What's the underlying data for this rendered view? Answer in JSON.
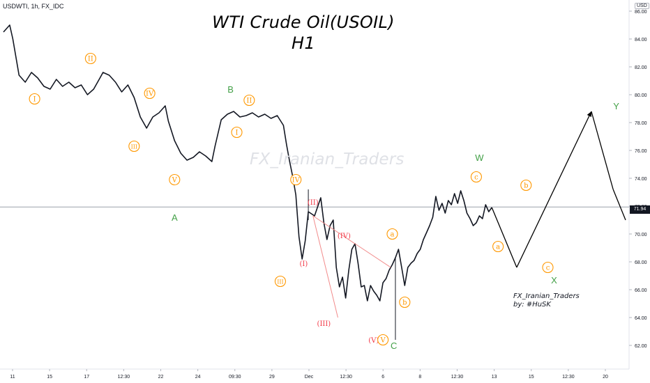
{
  "header": {
    "symbol": "USDWTI, 1h, FX_IDC",
    "title_line1": "WTI Crude Oil(USOIL)",
    "title_line2": "H1",
    "watermark": "FX_Iranian_Traders",
    "credit_line1": "FX_Iranian_Traders",
    "credit_line2": "by: #HuSK",
    "currency": "USD",
    "last_price": "71.94"
  },
  "colors": {
    "candle": "#131722",
    "orange": "#ff9800",
    "green": "#43a047",
    "red": "#f23645",
    "grid": "#c0c4cc",
    "trendline": "#f28b8b"
  },
  "chart_data": {
    "type": "line",
    "subtype": "candlestick price path with Elliott wave annotations",
    "ylim": [
      60.4,
      86.8
    ],
    "y_ticks": [
      62,
      64,
      66,
      68,
      70,
      72,
      74,
      76,
      78,
      80,
      82,
      84,
      86
    ],
    "y_tick_labels": [
      "62.00",
      "64.00",
      "66.00",
      "68.00",
      "70.00",
      "72.00",
      "74.00",
      "76.00",
      "78.00",
      "80.00",
      "82.00",
      "84.00",
      "86.00"
    ],
    "x_tick_labels": [
      "11",
      "15",
      "17",
      "12:30",
      "22",
      "24",
      "09:30",
      "29",
      "Dec",
      "12:30",
      "6",
      "8",
      "12:30",
      "13",
      "15",
      "12:30",
      "20"
    ],
    "price_path": [
      [
        0,
        84.5
      ],
      [
        2,
        85.0
      ],
      [
        3,
        84.0
      ],
      [
        5,
        81.4
      ],
      [
        7,
        80.9
      ],
      [
        9,
        81.6
      ],
      [
        11,
        81.2
      ],
      [
        13,
        80.6
      ],
      [
        15,
        80.4
      ],
      [
        17,
        81.1
      ],
      [
        19,
        80.6
      ],
      [
        21,
        80.9
      ],
      [
        23,
        80.5
      ],
      [
        25,
        80.7
      ],
      [
        27,
        80.0
      ],
      [
        29,
        80.4
      ],
      [
        31,
        81.2
      ],
      [
        32,
        81.6
      ],
      [
        34,
        81.4
      ],
      [
        36,
        80.9
      ],
      [
        38,
        80.2
      ],
      [
        40,
        80.7
      ],
      [
        42,
        79.8
      ],
      [
        44,
        78.4
      ],
      [
        46,
        77.6
      ],
      [
        48,
        78.4
      ],
      [
        50,
        78.7
      ],
      [
        52,
        79.2
      ],
      [
        53,
        78.1
      ],
      [
        55,
        76.7
      ],
      [
        57,
        75.8
      ],
      [
        59,
        75.3
      ],
      [
        61,
        75.5
      ],
      [
        63,
        75.9
      ],
      [
        65,
        75.6
      ],
      [
        67,
        75.2
      ],
      [
        68,
        76.3
      ],
      [
        70,
        78.2
      ],
      [
        72,
        78.6
      ],
      [
        74,
        78.8
      ],
      [
        76,
        78.4
      ],
      [
        78,
        78.5
      ],
      [
        80,
        78.7
      ],
      [
        82,
        78.4
      ],
      [
        84,
        78.6
      ],
      [
        86,
        78.3
      ],
      [
        88,
        78.5
      ],
      [
        90,
        77.8
      ],
      [
        91,
        76.4
      ],
      [
        92,
        75.2
      ],
      [
        93,
        74.1
      ],
      [
        94,
        72.8
      ],
      [
        95,
        69.8
      ],
      [
        96,
        68.2
      ],
      [
        97,
        69.5
      ],
      [
        98,
        71.6
      ],
      [
        100,
        71.3
      ],
      [
        102,
        72.6
      ],
      [
        103,
        70.8
      ],
      [
        104,
        69.6
      ],
      [
        105,
        70.6
      ],
      [
        106,
        71.0
      ],
      [
        107,
        67.6
      ],
      [
        108,
        66.2
      ],
      [
        109,
        66.9
      ],
      [
        110,
        65.4
      ],
      [
        111,
        67.4
      ],
      [
        112,
        68.9
      ],
      [
        113,
        69.3
      ],
      [
        114,
        67.9
      ],
      [
        115,
        66.2
      ],
      [
        116,
        66.3
      ],
      [
        117,
        65.2
      ],
      [
        118,
        66.3
      ],
      [
        119,
        65.9
      ],
      [
        120,
        65.6
      ],
      [
        121,
        65.2
      ],
      [
        122,
        66.5
      ],
      [
        123,
        66.8
      ],
      [
        124,
        67.4
      ],
      [
        125,
        67.8
      ],
      [
        126,
        68.3
      ],
      [
        127,
        68.9
      ],
      [
        128,
        67.6
      ],
      [
        129,
        66.3
      ],
      [
        130,
        67.6
      ],
      [
        131,
        67.9
      ],
      [
        132,
        68.1
      ],
      [
        133,
        68.6
      ],
      [
        134,
        68.9
      ],
      [
        135,
        69.6
      ],
      [
        136,
        70.1
      ],
      [
        137,
        70.6
      ],
      [
        138,
        71.2
      ],
      [
        139,
        72.7
      ],
      [
        140,
        71.7
      ],
      [
        141,
        72.2
      ],
      [
        142,
        71.5
      ],
      [
        143,
        72.4
      ],
      [
        144,
        72.1
      ],
      [
        145,
        72.9
      ],
      [
        146,
        72.2
      ],
      [
        147,
        73.1
      ],
      [
        148,
        72.4
      ],
      [
        149,
        71.5
      ],
      [
        150,
        71.1
      ],
      [
        151,
        70.6
      ],
      [
        152,
        70.8
      ],
      [
        153,
        71.3
      ],
      [
        154,
        71.1
      ],
      [
        155,
        72.1
      ],
      [
        156,
        71.6
      ],
      [
        157,
        71.9
      ]
    ],
    "wicks": [
      {
        "x": 126,
        "low": 62.4,
        "high": 68.3
      },
      {
        "x": 98,
        "low": 71.0,
        "high": 73.2
      }
    ],
    "projection": {
      "name": "projected path",
      "points": [
        [
          157,
          71.9
        ],
        [
          165,
          67.6
        ],
        [
          189,
          78.8
        ],
        [
          196,
          73.2
        ],
        [
          200,
          71.0
        ]
      ]
    },
    "annotations": [
      {
        "label": "I",
        "style": "orange-circle",
        "x": 10,
        "y": 79.7
      },
      {
        "label": "II",
        "style": "orange-circle",
        "x": 28,
        "y": 82.6
      },
      {
        "label": "III",
        "style": "orange-circle",
        "x": 42,
        "y": 76.3
      },
      {
        "label": "IV",
        "style": "orange-circle",
        "x": 47,
        "y": 80.1
      },
      {
        "label": "V",
        "style": "orange-circle",
        "x": 55,
        "y": 73.9
      },
      {
        "label": "A",
        "style": "green",
        "x": 55,
        "y": 71.2
      },
      {
        "label": "B",
        "style": "green",
        "x": 73,
        "y": 80.4
      },
      {
        "label": "II",
        "style": "orange-circle",
        "x": 79,
        "y": 79.6
      },
      {
        "label": "I",
        "style": "orange-circle",
        "x": 75,
        "y": 77.3
      },
      {
        "label": "IV",
        "style": "orange-circle",
        "x": 94,
        "y": 73.9
      },
      {
        "label": "III",
        "style": "orange-circle",
        "x": 89,
        "y": 66.6
      },
      {
        "label": "(II)",
        "style": "red",
        "x": 99.5,
        "y": 72.3
      },
      {
        "label": "(I)",
        "style": "red",
        "x": 96.5,
        "y": 67.9
      },
      {
        "label": "(IV)",
        "style": "red",
        "x": 109.5,
        "y": 69.9
      },
      {
        "label": "(III)",
        "style": "red",
        "x": 103,
        "y": 63.6
      },
      {
        "label": "(V)",
        "style": "red",
        "x": 119,
        "y": 62.4
      },
      {
        "label": "V",
        "style": "orange-circle",
        "x": 122,
        "y": 62.4
      },
      {
        "label": "C",
        "style": "green",
        "x": 125.5,
        "y": 62.0
      },
      {
        "label": "a",
        "style": "orange-circle",
        "x": 125,
        "y": 70.0
      },
      {
        "label": "b",
        "style": "orange-circle",
        "x": 129,
        "y": 65.1
      },
      {
        "label": "W",
        "style": "green",
        "x": 153,
        "y": 75.5
      },
      {
        "label": "c",
        "style": "orange-circle",
        "x": 152,
        "y": 74.1
      },
      {
        "label": "a",
        "style": "orange-circle",
        "x": 159,
        "y": 69.1
      },
      {
        "label": "b",
        "style": "orange-circle",
        "x": 168,
        "y": 73.5
      },
      {
        "label": "c",
        "style": "orange-circle",
        "x": 175,
        "y": 67.6
      },
      {
        "label": "X",
        "style": "green",
        "x": 177,
        "y": 66.7
      },
      {
        "label": "Y",
        "style": "green",
        "x": 197,
        "y": 79.2
      }
    ],
    "trendlines": [
      {
        "from": [
          99.5,
          71.3
        ],
        "to": [
          124.5,
          67.6
        ]
      },
      {
        "from": [
          99.5,
          71.3
        ],
        "to": [
          107.5,
          64.0
        ]
      }
    ],
    "last_price_line": 71.94,
    "legend": "none",
    "grid": false
  }
}
